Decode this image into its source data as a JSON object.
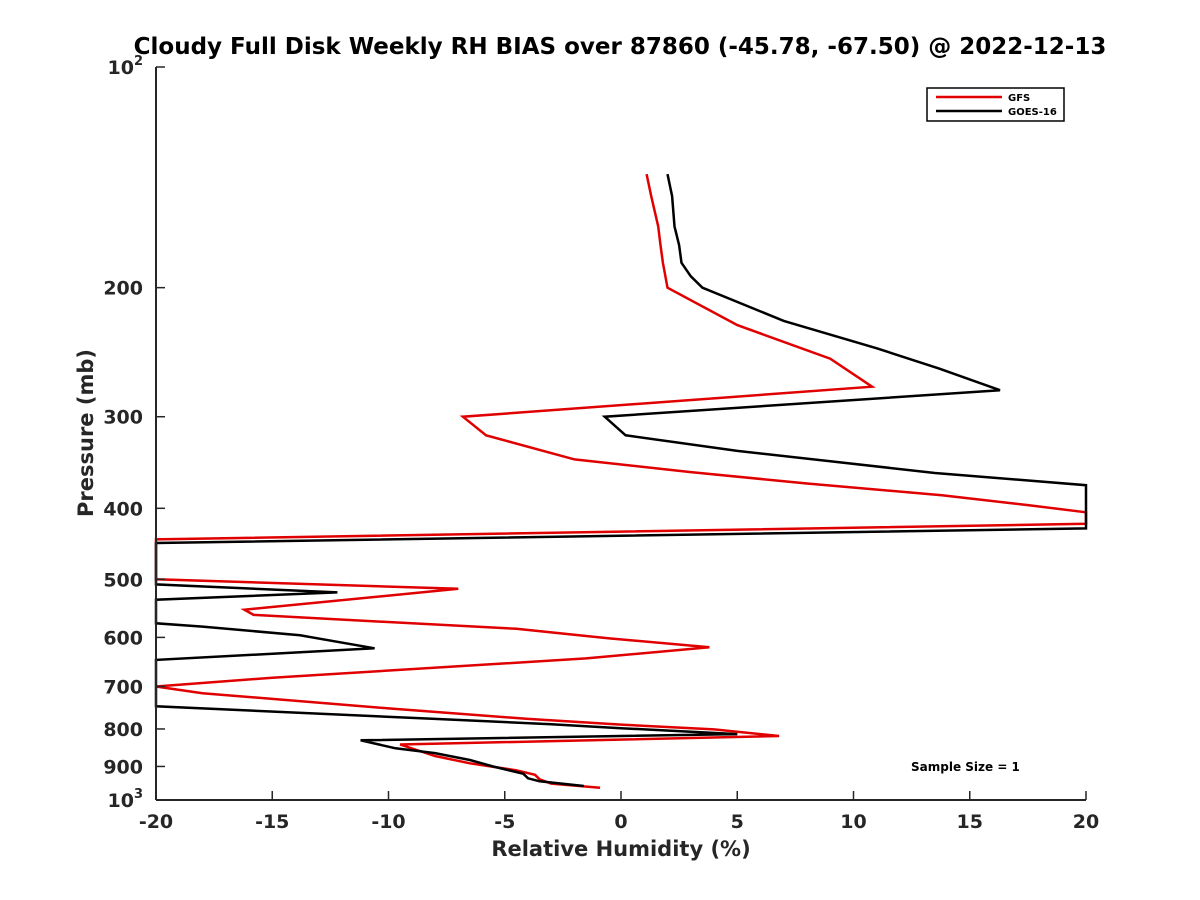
{
  "chart_data": {
    "type": "line",
    "title": "Cloudy Full Disk Weekly RH BIAS over 87860 (-45.78, -67.50) @ 2022-12-13",
    "xlabel": "Relative Humidity (%)",
    "ylabel": "Pressure (mb)",
    "xlim": [
      -20,
      20
    ],
    "ylim": [
      100,
      1000
    ],
    "y_scale": "log",
    "y_reversed": true,
    "grid": false,
    "legend_position": "top-right",
    "xticks": [
      "-20",
      "-15",
      "-10",
      "-5",
      "0",
      "5",
      "10",
      "15",
      "20"
    ],
    "yticks": [
      {
        "value": 100,
        "base": "10",
        "exp": "2",
        "label": ""
      },
      {
        "value": 200,
        "base": "",
        "exp": "",
        "label": "200"
      },
      {
        "value": 300,
        "base": "",
        "exp": "",
        "label": "300"
      },
      {
        "value": 400,
        "base": "",
        "exp": "",
        "label": "400"
      },
      {
        "value": 500,
        "base": "",
        "exp": "",
        "label": "500"
      },
      {
        "value": 600,
        "base": "",
        "exp": "",
        "label": "600"
      },
      {
        "value": 700,
        "base": "",
        "exp": "",
        "label": "700"
      },
      {
        "value": 800,
        "base": "",
        "exp": "",
        "label": "800"
      },
      {
        "value": 900,
        "base": "",
        "exp": "",
        "label": "900"
      },
      {
        "value": 1000,
        "base": "10",
        "exp": "3",
        "label": ""
      }
    ],
    "annotation": "Sample Size = 1",
    "series": [
      {
        "name": "GFS",
        "color": "#e00000",
        "points": [
          [
            1.1,
            140
          ],
          [
            1.3,
            150
          ],
          [
            1.6,
            165
          ],
          [
            1.7,
            175
          ],
          [
            1.8,
            185
          ],
          [
            2.0,
            200
          ],
          [
            5.0,
            225
          ],
          [
            9.0,
            250
          ],
          [
            10.8,
            273
          ],
          [
            -6.8,
            300
          ],
          [
            -5.8,
            318
          ],
          [
            -2.0,
            343
          ],
          [
            3.0,
            357
          ],
          [
            8.0,
            370
          ],
          [
            13.8,
            384
          ],
          [
            17.5,
            396
          ],
          [
            20.0,
            405
          ],
          [
            20.0,
            420
          ],
          [
            -20.0,
            441
          ],
          [
            -20.0,
            500
          ],
          [
            -7.0,
            515
          ],
          [
            -16.2,
            550
          ],
          [
            -15.8,
            559
          ],
          [
            -4.5,
            584
          ],
          [
            -0.5,
            602
          ],
          [
            3.8,
            619
          ],
          [
            -1.5,
            641
          ],
          [
            -15.0,
            681
          ],
          [
            -20.0,
            700
          ],
          [
            -18.0,
            715
          ],
          [
            -10.0,
            750
          ],
          [
            -4.0,
            775
          ],
          [
            0.0,
            789
          ],
          [
            4.0,
            801
          ],
          [
            6.8,
            818
          ],
          [
            -9.5,
            840
          ],
          [
            -8.0,
            871
          ],
          [
            -6.5,
            891
          ],
          [
            -4.5,
            911
          ],
          [
            -3.7,
            924
          ],
          [
            -3.5,
            937
          ],
          [
            -3.0,
            950
          ],
          [
            -0.9,
            962
          ]
        ]
      },
      {
        "name": "GOES-16",
        "color": "#000000",
        "points": [
          [
            2.0,
            140
          ],
          [
            2.2,
            150
          ],
          [
            2.3,
            165
          ],
          [
            2.5,
            175
          ],
          [
            2.6,
            185
          ],
          [
            3.0,
            193
          ],
          [
            3.5,
            200
          ],
          [
            7.0,
            222
          ],
          [
            11.0,
            242
          ],
          [
            13.7,
            258
          ],
          [
            16.3,
            276
          ],
          [
            -0.7,
            300
          ],
          [
            0.2,
            318
          ],
          [
            5.0,
            334
          ],
          [
            9.0,
            345
          ],
          [
            13.5,
            358
          ],
          [
            20.0,
            372
          ],
          [
            20.0,
            426
          ],
          [
            -20.0,
            446
          ],
          [
            -20.0,
            508
          ],
          [
            -12.2,
            521
          ],
          [
            -20.0,
            533
          ],
          [
            -20.0,
            574
          ],
          [
            -18.0,
            580
          ],
          [
            -13.8,
            596
          ],
          [
            -10.6,
            621
          ],
          [
            -20.0,
            644
          ],
          [
            -20.0,
            745
          ],
          [
            -8.0,
            775
          ],
          [
            -3.0,
            788
          ],
          [
            0.0,
            798
          ],
          [
            5.0,
            813
          ],
          [
            -11.2,
            829
          ],
          [
            -9.7,
            850
          ],
          [
            -8.0,
            863
          ],
          [
            -6.5,
            882
          ],
          [
            -5.5,
            900
          ],
          [
            -4.2,
            921
          ],
          [
            -4.0,
            934
          ],
          [
            -3.5,
            943
          ],
          [
            -1.6,
            957
          ]
        ]
      }
    ]
  }
}
